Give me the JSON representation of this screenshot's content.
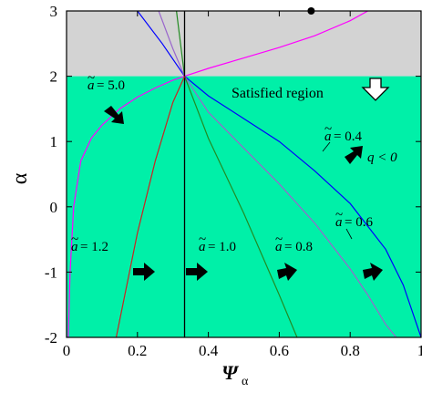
{
  "chart_data": {
    "type": "line",
    "xlabel_main": "Ψ",
    "xlabel_sub": "α",
    "ylabel": "α",
    "xlim": [
      0,
      1
    ],
    "ylim": [
      -2,
      3
    ],
    "xticks": [
      "0",
      "0.2",
      "0.4",
      "0.6",
      "0.8",
      "1"
    ],
    "xtick_values": [
      0,
      0.2,
      0.4,
      0.6,
      0.8,
      1.0
    ],
    "yticks": [
      "-2",
      "-1",
      "0",
      "1",
      "2",
      "3"
    ],
    "ytick_values": [
      -2,
      -1,
      0,
      1,
      2,
      3
    ],
    "regions": {
      "gray_band": {
        "alpha_min": 2,
        "alpha_max": 3,
        "color": "#d3d3d3"
      },
      "satisfied": {
        "label": "Satisfied region",
        "alpha_max": 2,
        "color": "#00f0a8"
      }
    },
    "vertical_line_x": 0.333,
    "marker_point": {
      "x": 0.69,
      "y": 3.0
    },
    "condition_label": "q < 0",
    "series": [
      {
        "a": "5.0",
        "color": "#ff00ff",
        "x": [
          0.005,
          0.01,
          0.02,
          0.04,
          0.07,
          0.1,
          0.15,
          0.2,
          0.25,
          0.3,
          0.333,
          0.4,
          0.5,
          0.6,
          0.7,
          0.8,
          0.85
        ],
        "y": [
          -2.0,
          -1.0,
          0.0,
          0.7,
          1.05,
          1.25,
          1.5,
          1.68,
          1.82,
          1.94,
          2.0,
          2.12,
          2.28,
          2.44,
          2.62,
          2.85,
          3.0
        ]
      },
      {
        "a": "0.4",
        "color": "#0000ff",
        "x": [
          0.2,
          0.27,
          0.333,
          0.4,
          0.5,
          0.6,
          0.7,
          0.8,
          0.9,
          0.95,
          1.0
        ],
        "y": [
          3.0,
          2.5,
          2.0,
          1.7,
          1.35,
          1.0,
          0.55,
          0.05,
          -0.65,
          -1.2,
          -2.0
        ]
      },
      {
        "a": "0.6",
        "color": "#9966cc",
        "x": [
          0.26,
          0.3,
          0.333,
          0.4,
          0.5,
          0.6,
          0.7,
          0.8,
          0.85,
          0.9,
          0.93
        ],
        "y": [
          3.0,
          2.42,
          2.0,
          1.45,
          0.9,
          0.35,
          -0.25,
          -0.95,
          -1.35,
          -1.8,
          -2.0
        ]
      },
      {
        "a": "0.8",
        "color": "#228b22",
        "x": [
          0.31,
          0.333,
          0.4,
          0.5,
          0.6,
          0.65
        ],
        "y": [
          3.0,
          2.0,
          1.05,
          -0.1,
          -1.35,
          -2.0
        ]
      },
      {
        "a": "1.0",
        "color": "#000000",
        "x": [
          0.333,
          0.333
        ],
        "y": [
          -2.0,
          3.0
        ]
      },
      {
        "a": "1.2",
        "color": "#cc2222",
        "x": [
          0.14,
          0.2,
          0.25,
          0.3,
          0.333
        ],
        "y": [
          -2.0,
          -0.4,
          0.7,
          1.6,
          2.0
        ]
      }
    ],
    "annotations": [
      {
        "text": "= 5.0",
        "a_symbol": "a"
      },
      {
        "text": "= 0.4",
        "a_symbol": "a"
      },
      {
        "text": "= 0.6",
        "a_symbol": "a"
      },
      {
        "text": "= 0.8",
        "a_symbol": "a"
      },
      {
        "text": "= 1.0",
        "a_symbol": "a"
      },
      {
        "text": "= 1.2",
        "a_symbol": "a"
      }
    ]
  }
}
